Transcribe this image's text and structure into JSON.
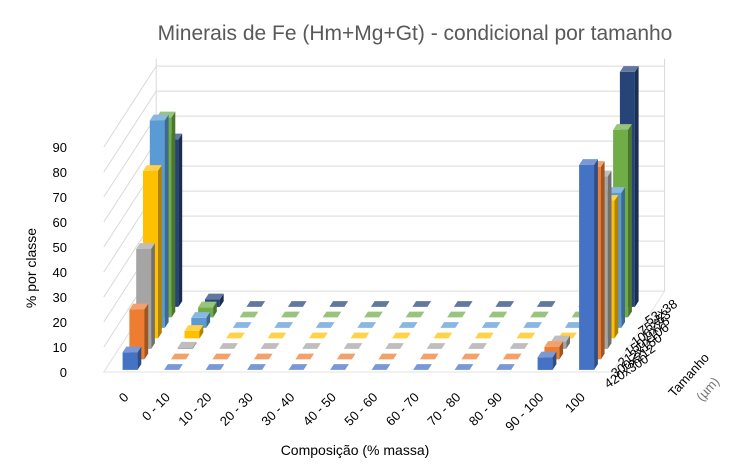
{
  "chart_data": {
    "type": "bar",
    "subtype": "3d-clustered-column",
    "title": "Minerais de Fe (Hm+Mg+Gt) - condicional por tamanho",
    "xlabel": "Composição (% massa)",
    "ylabel": "% por classe",
    "zlabel": "Tamanho",
    "zunit": "(µm)",
    "ylim": [
      0,
      90
    ],
    "yticks": [
      "0",
      "10",
      "20",
      "30",
      "40",
      "50",
      "60",
      "70",
      "80",
      "90"
    ],
    "grid": true,
    "legend": "none",
    "categories": [
      "0",
      "0 - 10",
      "10 - 20",
      "20 - 30",
      "30 - 40",
      "40 - 50",
      "50 - 60",
      "60 - 70",
      "70 - 80",
      "80 - 90",
      "90 - 100",
      "100"
    ],
    "series": [
      {
        "name": "420x300",
        "color": "#4472C4",
        "values": [
          7,
          0,
          0,
          0,
          0,
          0,
          0,
          0,
          0,
          0,
          5,
          82
        ]
      },
      {
        "name": "300x212",
        "color": "#ED7D31",
        "values": [
          20,
          0,
          0,
          0,
          0,
          0,
          0,
          0,
          0,
          0,
          5,
          77
        ]
      },
      {
        "name": "212x150",
        "color": "#A5A5A5",
        "values": [
          40,
          0.5,
          0,
          0,
          0,
          0,
          0,
          0,
          0,
          0,
          3,
          69
        ]
      },
      {
        "name": "150x106",
        "color": "#FFC000",
        "values": [
          67,
          3,
          0,
          0,
          0,
          0,
          0,
          0,
          0,
          0,
          0,
          55
        ]
      },
      {
        "name": "106x75",
        "color": "#5B9BD5",
        "values": [
          83,
          4,
          0,
          0,
          0,
          0,
          0,
          0,
          0,
          0,
          0,
          54
        ]
      },
      {
        "name": "75x53",
        "color": "#70AD47",
        "values": [
          80,
          4,
          0,
          0,
          0,
          0,
          0,
          0,
          0,
          0,
          0,
          75
        ]
      },
      {
        "name": "53x38",
        "color": "#264478",
        "values": [
          67,
          3,
          0,
          0,
          0,
          0,
          0,
          0,
          0,
          0,
          0,
          94
        ]
      }
    ]
  }
}
